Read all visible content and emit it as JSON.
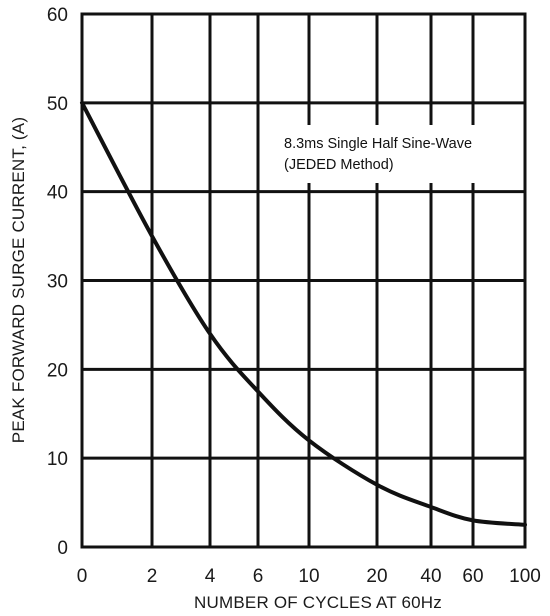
{
  "chart_data": {
    "type": "line",
    "title": "",
    "xlabel": "NUMBER OF CYCLES AT 60Hz",
    "ylabel": "PEAK FORWARD SURGE CURRENT, (A)",
    "x_scale": "log",
    "x_ticks": [
      "0",
      "2",
      "4",
      "6",
      "10",
      "20",
      "40",
      "60",
      "100"
    ],
    "y_ticks": [
      "0",
      "10",
      "20",
      "30",
      "40",
      "50",
      "60"
    ],
    "ylim": [
      0,
      60
    ],
    "grid": true,
    "annotation": {
      "line1": "8.3ms Single Half Sine-Wave",
      "line2": "(JEDED Method)"
    },
    "series": [
      {
        "color": "#111111",
        "points": [
          {
            "x": "0",
            "y": 50
          },
          {
            "x": "2",
            "y": 35
          },
          {
            "x": "4",
            "y": 24
          },
          {
            "x": "6",
            "y": 17.5
          },
          {
            "x": "10",
            "y": 12
          },
          {
            "x": "20",
            "y": 7
          },
          {
            "x": "40",
            "y": 4.5
          },
          {
            "x": "60",
            "y": 3
          },
          {
            "x": "100",
            "y": 2.5
          }
        ]
      }
    ]
  }
}
